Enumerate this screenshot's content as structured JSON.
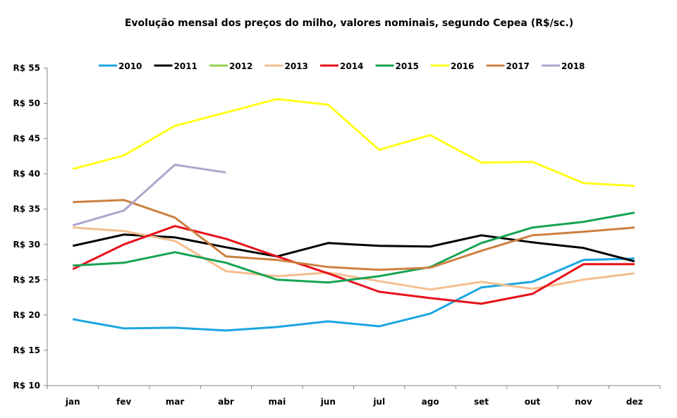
{
  "chart_data": {
    "type": "line",
    "title": "Evolução mensal dos preços do milho, valores nominais, segundo Cepea (R$/sc.)",
    "xlabel": "",
    "ylabel": "",
    "categories": [
      "jan",
      "fev",
      "mar",
      "abr",
      "mai",
      "jun",
      "jul",
      "ago",
      "set",
      "out",
      "nov",
      "dez"
    ],
    "ylim": [
      10,
      55
    ],
    "yticks": [
      10,
      15,
      20,
      25,
      30,
      35,
      40,
      45,
      50,
      55
    ],
    "ytick_prefix": "R$ ",
    "grid": false,
    "legend_position": "top",
    "series": [
      {
        "name": "2010",
        "color": "#1BA6E0",
        "values": [
          19.4,
          18.1,
          18.2,
          17.8,
          18.3,
          19.1,
          18.4,
          20.2,
          23.9,
          24.7,
          27.8,
          28.0
        ]
      },
      {
        "name": "2011",
        "color": "#000000",
        "values": [
          29.8,
          31.4,
          31.0,
          29.6,
          28.3,
          30.2,
          29.8,
          29.7,
          31.3,
          30.3,
          29.5,
          27.6
        ]
      },
      {
        "name": "2012",
        "color": "#92D050",
        "values": []
      },
      {
        "name": "2013",
        "color": "#F4BE8F",
        "values": [
          32.4,
          31.9,
          30.5,
          26.2,
          25.5,
          26.0,
          24.8,
          23.6,
          24.7,
          23.7,
          25.0,
          25.9
        ]
      },
      {
        "name": "2014",
        "color": "#E8101A",
        "values": [
          26.5,
          30.0,
          32.6,
          30.8,
          28.3,
          25.9,
          23.3,
          22.4,
          21.6,
          23.0,
          27.2,
          27.2
        ]
      },
      {
        "name": "2015",
        "color": "#16A352",
        "values": [
          27.0,
          27.4,
          28.9,
          27.4,
          25.0,
          24.6,
          25.5,
          26.8,
          30.2,
          32.4,
          33.2,
          34.5
        ]
      },
      {
        "name": "2016",
        "color": "#FFFF1A",
        "values": [
          40.7,
          42.6,
          46.8,
          48.7,
          50.6,
          49.8,
          43.4,
          45.5,
          41.6,
          41.7,
          38.7,
          38.3
        ]
      },
      {
        "name": "2017",
        "color": "#CC8040",
        "values": [
          36.0,
          36.3,
          33.8,
          28.3,
          27.8,
          26.8,
          26.4,
          26.7,
          29.1,
          31.3,
          31.8,
          32.4
        ]
      },
      {
        "name": "2018",
        "color": "#B0A4CC",
        "values": [
          32.7,
          34.8,
          41.3,
          40.2
        ]
      }
    ]
  }
}
